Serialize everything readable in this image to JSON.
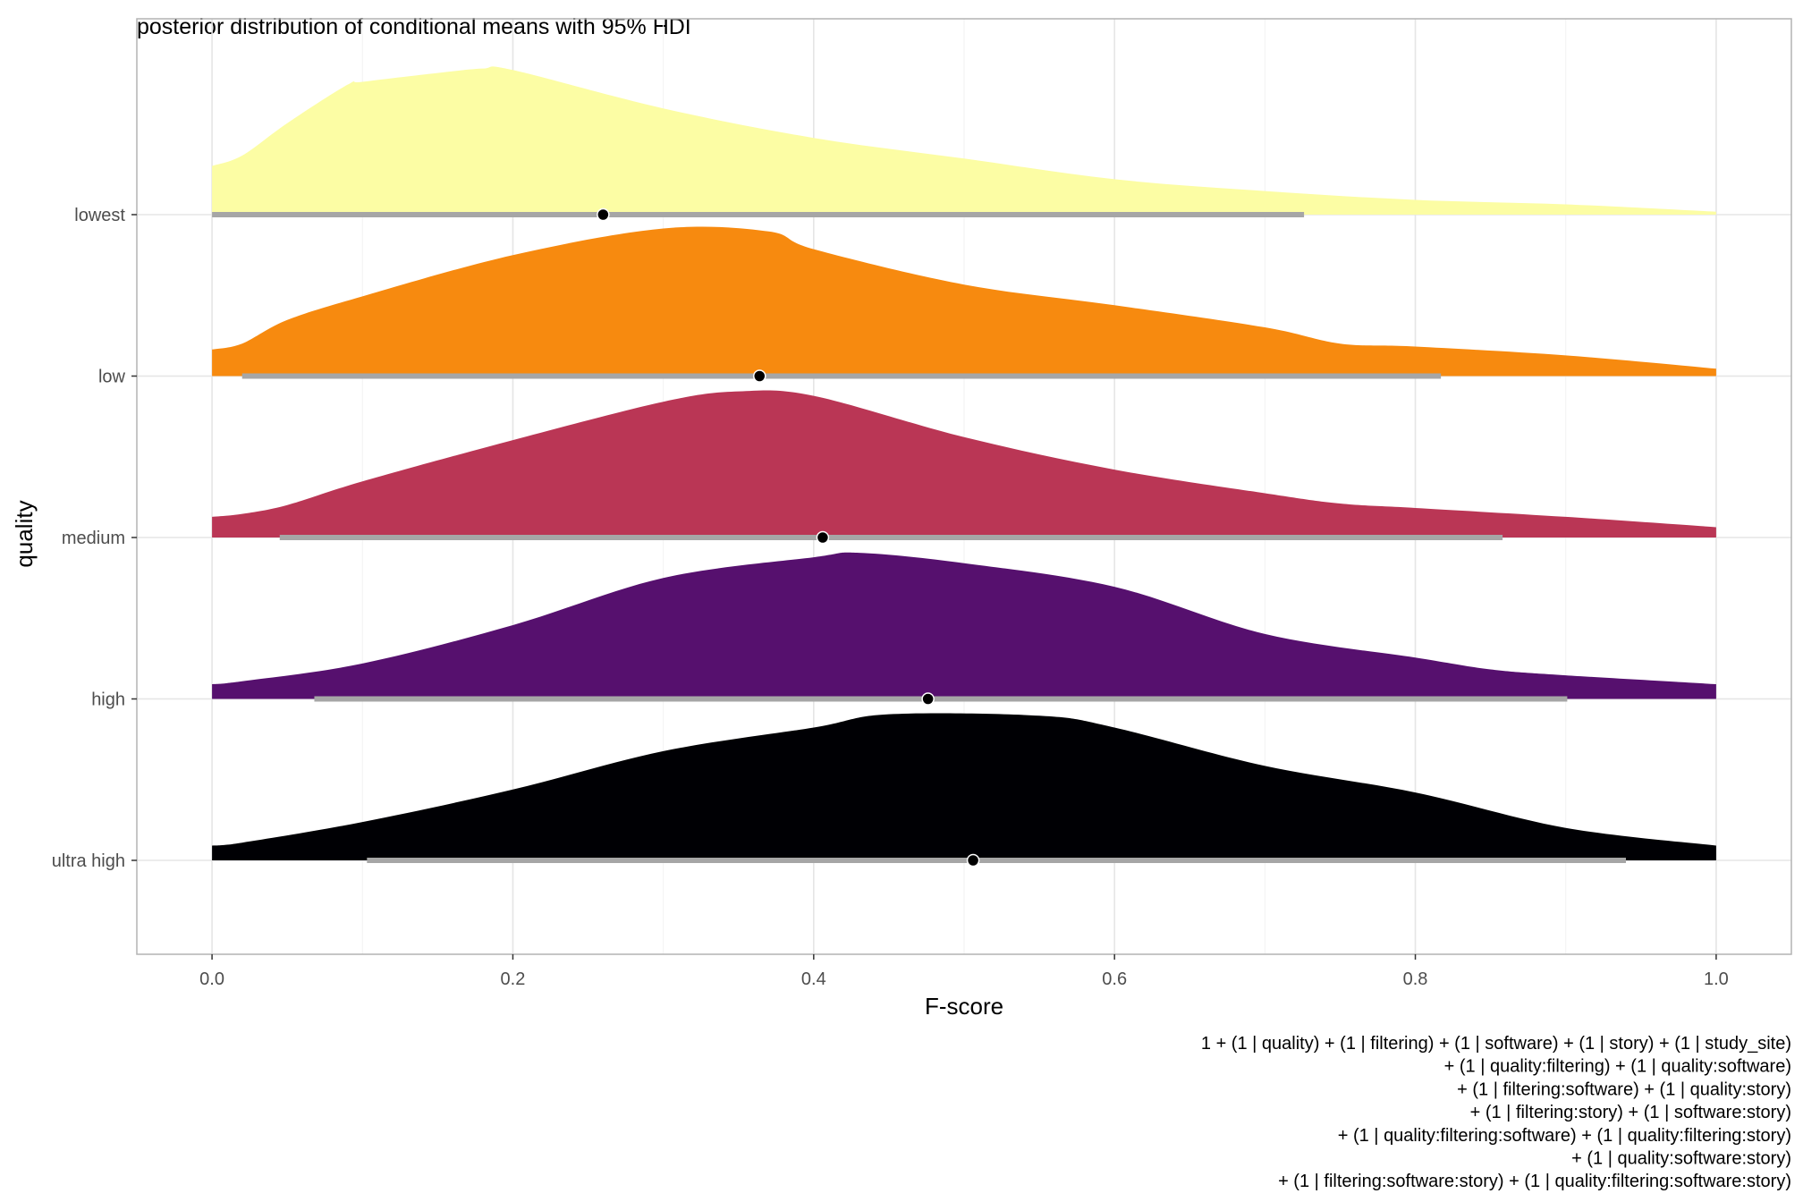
{
  "chart_data": {
    "type": "ridgeline",
    "title": "posterior distribution of conditional means with 95% HDI",
    "xlabel": "F-score",
    "ylabel": "quality",
    "xlim": [
      -0.05,
      1.05
    ],
    "x_ticks": [
      "0.0",
      "0.2",
      "0.4",
      "0.6",
      "0.8",
      "1.0"
    ],
    "x_tick_values": [
      0.0,
      0.2,
      0.4,
      0.6,
      0.8,
      1.0
    ],
    "grid": true,
    "legend": "none",
    "categories": [
      "lowest",
      "low",
      "medium",
      "high",
      "ultra high"
    ],
    "series": [
      {
        "category": "lowest",
        "color": "#FCFDA4",
        "mean": 0.26,
        "hdi": [
          0.0,
          0.726
        ],
        "density_x": [
          0.0,
          0.02,
          0.05,
          0.09,
          0.1,
          0.15,
          0.18,
          0.2,
          0.3,
          0.4,
          0.5,
          0.6,
          0.7,
          0.8,
          0.9,
          1.0
        ],
        "density_y": [
          0.33,
          0.4,
          0.62,
          0.88,
          0.9,
          0.96,
          0.99,
          0.98,
          0.72,
          0.52,
          0.38,
          0.24,
          0.16,
          0.1,
          0.07,
          0.02
        ]
      },
      {
        "category": "low",
        "color": "#F78A0F",
        "mean": 0.364,
        "hdi": [
          0.02,
          0.817
        ],
        "density_x": [
          0.0,
          0.02,
          0.05,
          0.1,
          0.2,
          0.3,
          0.37,
          0.4,
          0.5,
          0.6,
          0.7,
          0.75,
          0.8,
          0.9,
          1.0
        ],
        "density_y": [
          0.18,
          0.22,
          0.38,
          0.54,
          0.82,
          1.0,
          0.98,
          0.86,
          0.62,
          0.48,
          0.33,
          0.22,
          0.2,
          0.14,
          0.05
        ]
      },
      {
        "category": "medium",
        "color": "#BA3655",
        "mean": 0.406,
        "hdi": [
          0.045,
          0.858
        ],
        "density_x": [
          0.0,
          0.02,
          0.05,
          0.1,
          0.2,
          0.3,
          0.35,
          0.4,
          0.5,
          0.6,
          0.7,
          0.75,
          0.8,
          0.9,
          1.0
        ],
        "density_y": [
          0.14,
          0.16,
          0.22,
          0.38,
          0.66,
          0.92,
          0.99,
          0.96,
          0.68,
          0.46,
          0.3,
          0.23,
          0.2,
          0.14,
          0.07
        ]
      },
      {
        "category": "high",
        "color": "#56106E",
        "mean": 0.476,
        "hdi": [
          0.068,
          0.901
        ],
        "density_x": [
          0.0,
          0.02,
          0.1,
          0.2,
          0.3,
          0.4,
          0.43,
          0.5,
          0.6,
          0.7,
          0.8,
          0.85,
          0.9,
          1.0
        ],
        "density_y": [
          0.1,
          0.12,
          0.24,
          0.5,
          0.82,
          0.96,
          0.99,
          0.92,
          0.76,
          0.44,
          0.28,
          0.2,
          0.16,
          0.1
        ]
      },
      {
        "category": "ultra high",
        "color": "#000004",
        "mean": 0.506,
        "hdi": [
          0.103,
          0.94
        ],
        "density_x": [
          0.0,
          0.02,
          0.1,
          0.2,
          0.3,
          0.4,
          0.45,
          0.55,
          0.6,
          0.7,
          0.8,
          0.9,
          1.0
        ],
        "density_y": [
          0.1,
          0.12,
          0.26,
          0.48,
          0.74,
          0.9,
          0.99,
          0.98,
          0.9,
          0.64,
          0.46,
          0.22,
          0.1
        ]
      }
    ]
  },
  "caption": {
    "lines": [
      "1 + (1 | quality) + (1 | filtering) + (1 | software) + (1 | story) + (1 | study_site)",
      "+ (1 | quality:filtering) + (1 | quality:software)",
      "+ (1 | filtering:software) + (1 | quality:story)",
      "+ (1 | filtering:story) + (1 | software:story)",
      "+ (1 | quality:filtering:software) + (1 | quality:filtering:story)",
      "+ (1 | quality:software:story)",
      "+ (1 | filtering:software:story) + (1 | quality:filtering:software:story)"
    ]
  }
}
